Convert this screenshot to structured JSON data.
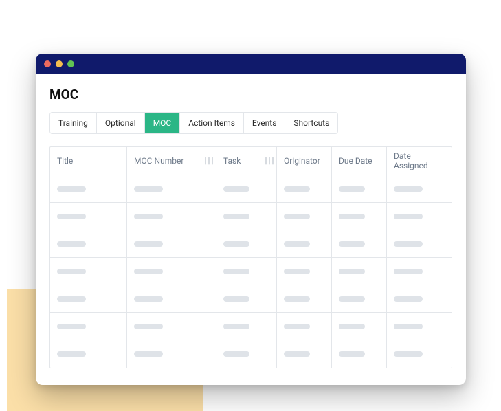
{
  "colors": {
    "titlebar_bg": "#101a6b",
    "accent_square": "#fbdfa8",
    "tab_active_bg": "#2bb686",
    "tab_active_fg": "#ffffff",
    "border": "#e3e6ea",
    "header_text": "#6e7a8a",
    "skeleton": "#dfe3e8",
    "dot_red": "#ec6a5e",
    "dot_yellow": "#f4be4f",
    "dot_green": "#61c354"
  },
  "page": {
    "title": "MOC"
  },
  "tabs": [
    {
      "label": "Training",
      "active": false
    },
    {
      "label": "Optional",
      "active": false
    },
    {
      "label": "MOC",
      "active": true
    },
    {
      "label": "Action Items",
      "active": false
    },
    {
      "label": "Events",
      "active": false
    },
    {
      "label": "Shortcuts",
      "active": false
    }
  ],
  "table": {
    "columns": [
      {
        "label": "Title",
        "skeleton_width": 42,
        "resizable": false
      },
      {
        "label": "MOC Number",
        "skeleton_width": 42,
        "resizable": true
      },
      {
        "label": "Task",
        "skeleton_width": 38,
        "resizable": true
      },
      {
        "label": "Originator",
        "skeleton_width": 38,
        "resizable": false
      },
      {
        "label": "Due Date",
        "skeleton_width": 38,
        "resizable": false
      },
      {
        "label": "Date Assigned",
        "skeleton_width": 42,
        "resizable": false
      }
    ],
    "row_count": 7
  }
}
